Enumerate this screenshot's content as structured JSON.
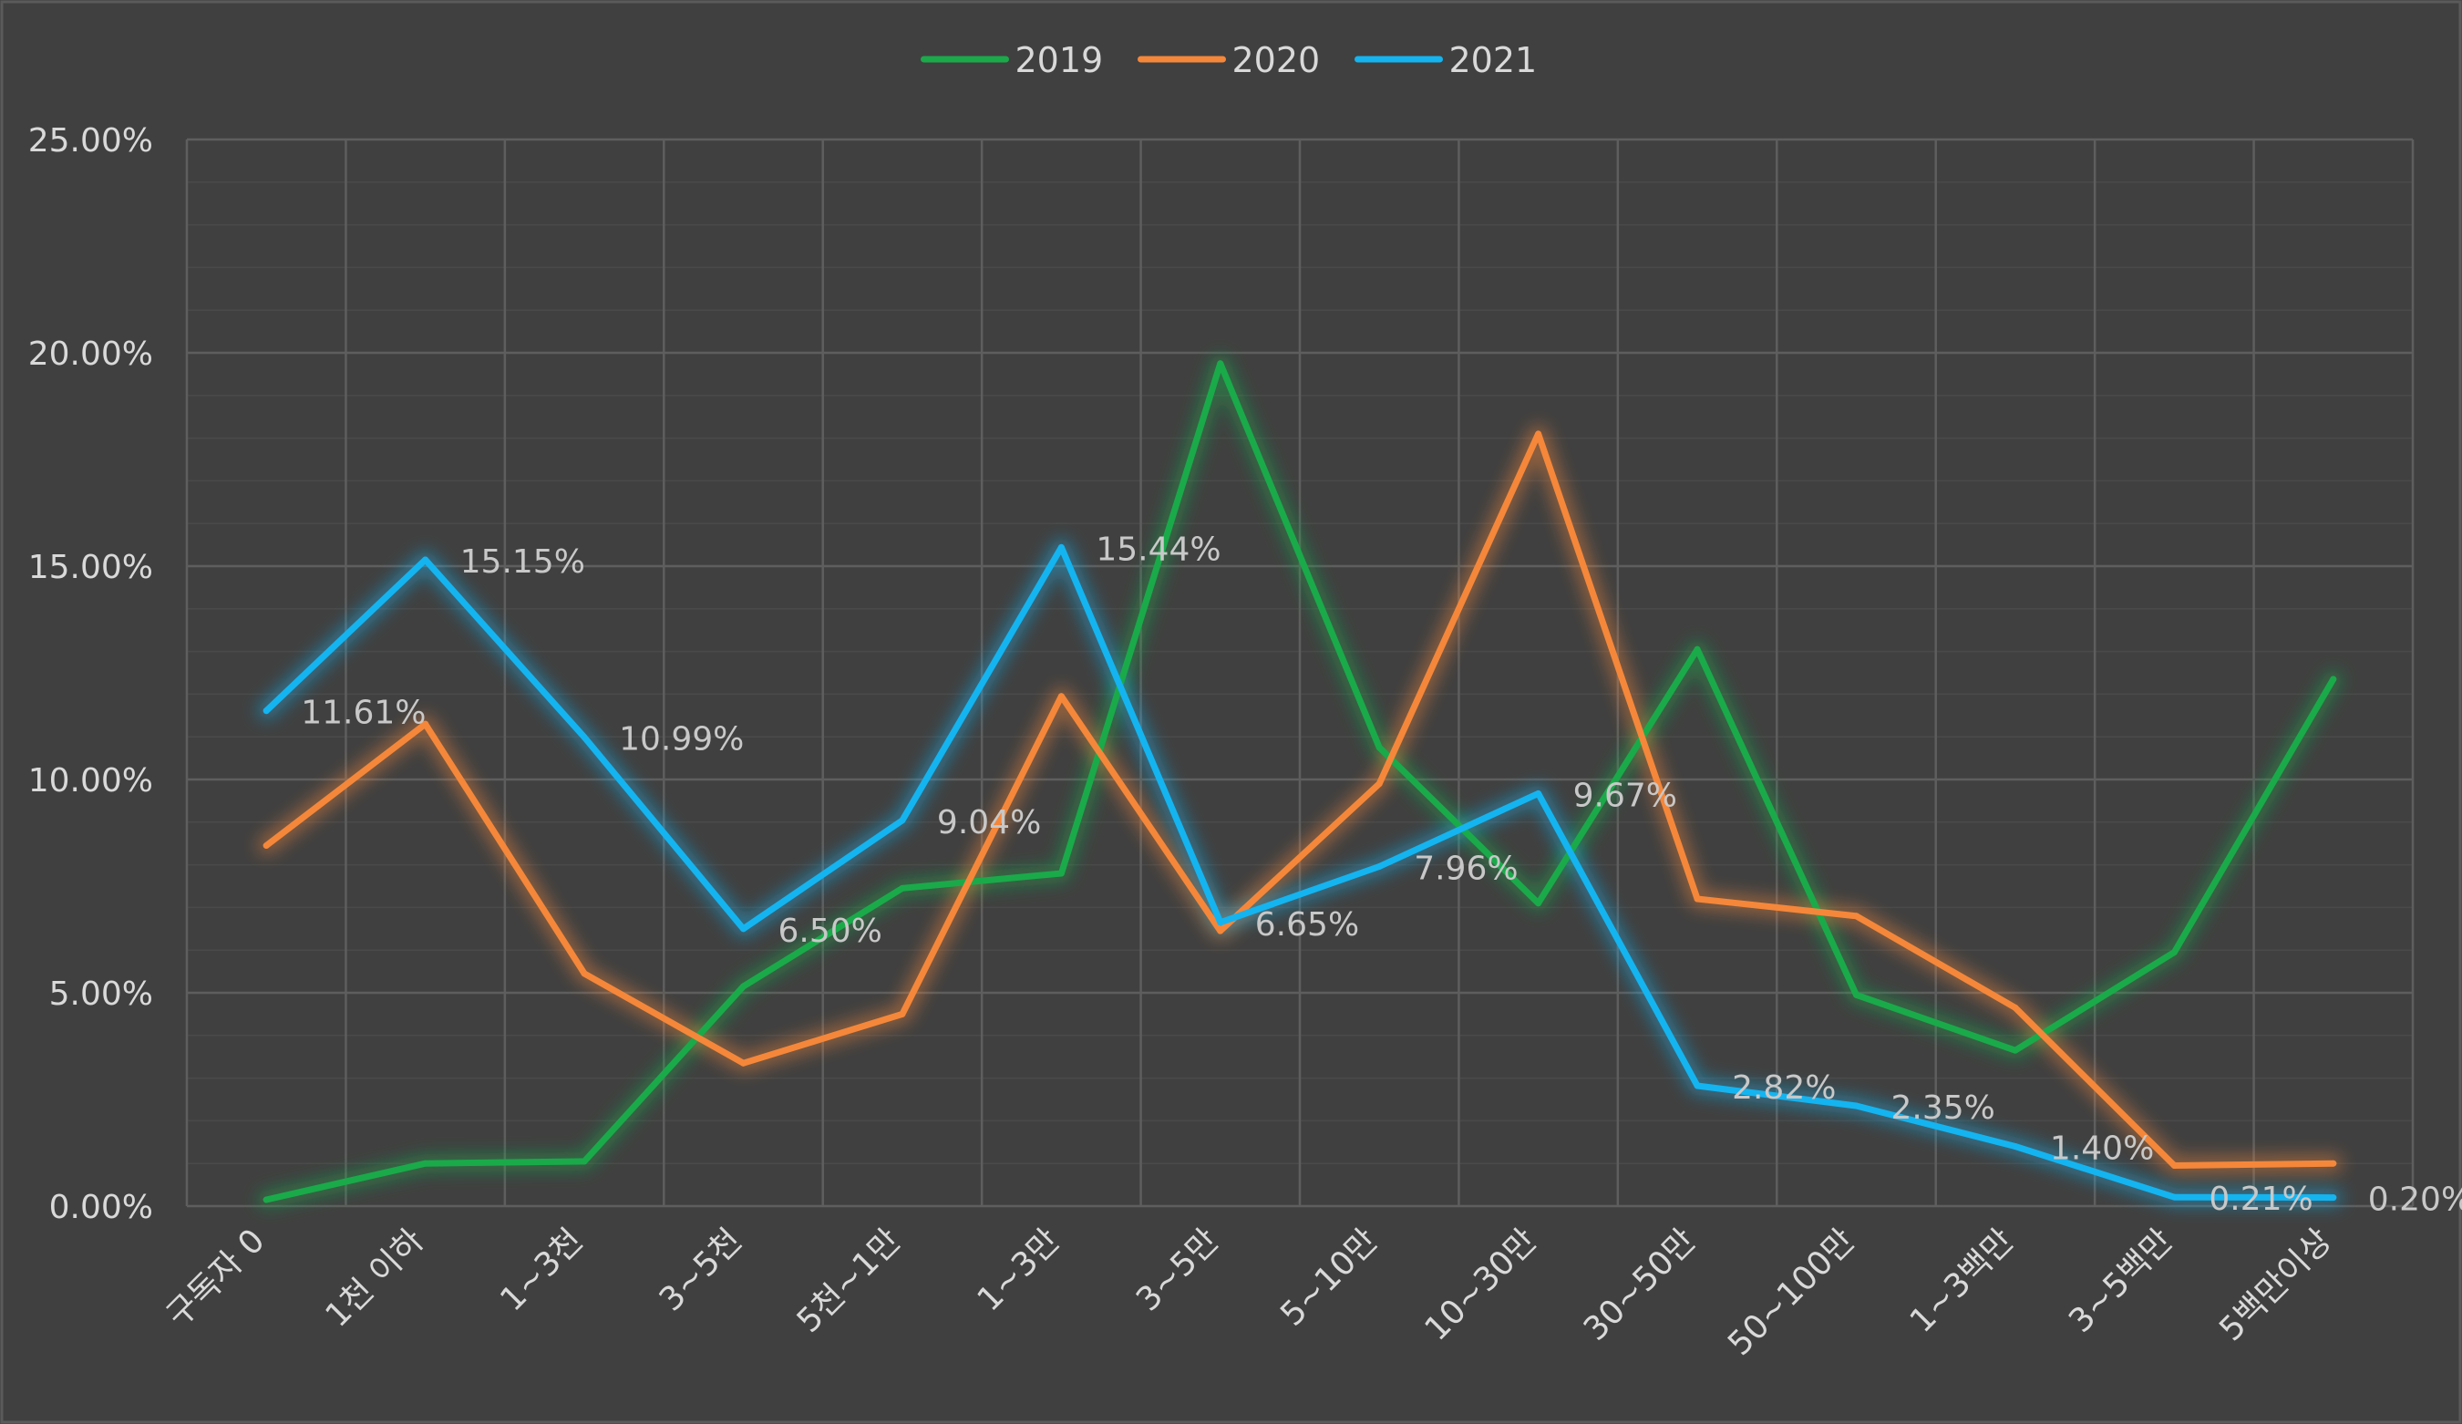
{
  "chart_data": {
    "type": "line",
    "title": "",
    "xlabel": "",
    "ylabel": "",
    "ylim": [
      0,
      0.25
    ],
    "y_ticks": [
      "0.00%",
      "5.00%",
      "10.00%",
      "15.00%",
      "20.00%",
      "25.00%"
    ],
    "grid": true,
    "legend_position": "top-center",
    "categories": [
      "구독자 0",
      "1천 이하",
      "1~3천",
      "3~5천",
      "5천~1만",
      "1~3만",
      "3~5만",
      "5~10만",
      "10~30만",
      "30~50만",
      "50~100만",
      "1~3백만",
      "3~5백만",
      "5백만이상"
    ],
    "series": [
      {
        "name": "2019",
        "color": "#1aaa4a",
        "values": [
          0.0015,
          0.01,
          0.0105,
          0.0515,
          0.0745,
          0.078,
          0.1975,
          0.1075,
          0.071,
          0.1305,
          0.0495,
          0.0365,
          0.0595,
          0.1235
        ]
      },
      {
        "name": "2020",
        "color": "#f5873a",
        "values": [
          0.0845,
          0.113,
          0.0545,
          0.0335,
          0.045,
          0.1195,
          0.0645,
          0.099,
          0.181,
          0.072,
          0.068,
          0.0465,
          0.0095,
          0.01
        ]
      },
      {
        "name": "2021",
        "color": "#14b4f0",
        "values": [
          0.1161,
          0.1515,
          0.1099,
          0.065,
          0.0904,
          0.1544,
          0.0665,
          0.0796,
          0.0967,
          0.0282,
          0.0235,
          0.014,
          0.0021,
          0.002
        ],
        "data_labels": [
          "11.61%",
          "15.15%",
          "10.99%",
          "6.50%",
          "9.04%",
          "15.44%",
          "6.65%",
          "7.96%",
          "9.67%",
          "2.82%",
          "2.35%",
          "1.40%",
          "0.21%",
          "0.20%"
        ]
      }
    ]
  }
}
